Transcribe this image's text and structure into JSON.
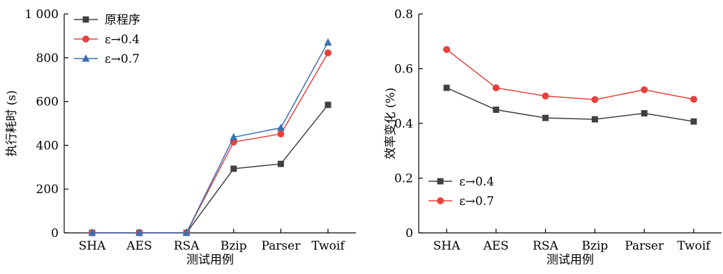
{
  "chart_data": [
    {
      "type": "line",
      "xlabel": "测试用例",
      "ylabel": "执行耗时 (s)",
      "categories": [
        "SHA",
        "AES",
        "RSA",
        "Bzip",
        "Parser",
        "Twoif"
      ],
      "ylim": [
        0,
        1000
      ],
      "yticks": [
        "0",
        "200",
        "400",
        "600",
        "800",
        "1 000"
      ],
      "legend_position": "top-left",
      "grid": false,
      "series": [
        {
          "name": "原程序",
          "marker": "square",
          "color": "#404040",
          "values": [
            0,
            0,
            0,
            293,
            315,
            585
          ]
        },
        {
          "name": "ε→0.4",
          "marker": "circle",
          "color": "#e8413c",
          "values": [
            0,
            0,
            0,
            415,
            452,
            822
          ]
        },
        {
          "name": "ε→0.7",
          "marker": "triangle",
          "color": "#3a6fb0",
          "values": [
            0,
            0,
            0,
            437,
            480,
            870
          ]
        }
      ]
    },
    {
      "type": "line",
      "xlabel": "测试用例",
      "ylabel": "效率变化 (%)",
      "categories": [
        "SHA",
        "AES",
        "RSA",
        "Bzip",
        "Parser",
        "Twoif"
      ],
      "ylim": [
        0,
        0.8
      ],
      "yticks": [
        "0",
        "0.2",
        "0.4",
        "0.6",
        "0.8"
      ],
      "legend_position": "bottom-left",
      "grid": false,
      "series": [
        {
          "name": "ε→0.4",
          "marker": "square",
          "color": "#404040",
          "values": [
            0.53,
            0.45,
            0.42,
            0.415,
            0.437,
            0.407
          ]
        },
        {
          "name": "ε→0.7",
          "marker": "circle",
          "color": "#e8413c",
          "values": [
            0.67,
            0.53,
            0.5,
            0.487,
            0.523,
            0.488
          ]
        }
      ]
    }
  ]
}
